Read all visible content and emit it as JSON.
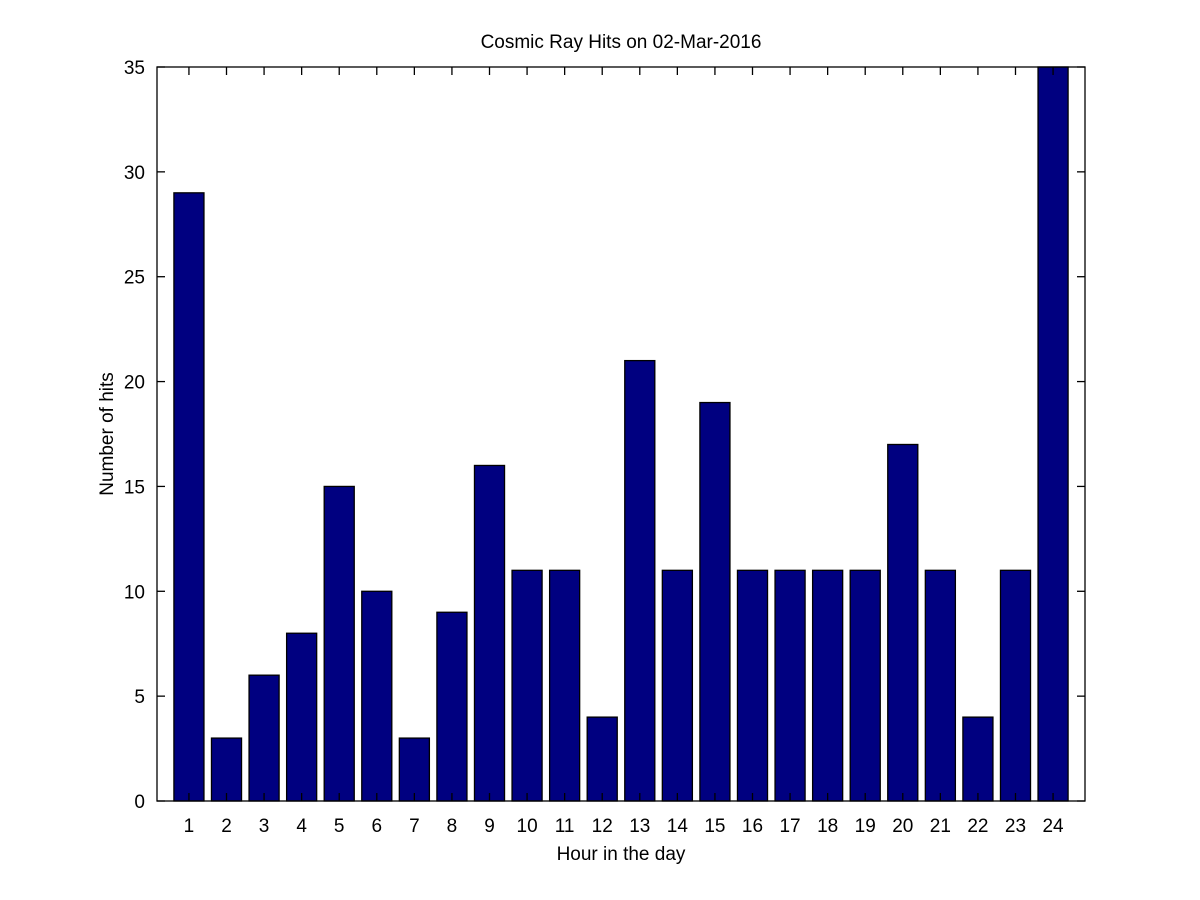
{
  "chart_data": {
    "type": "bar",
    "title": "Cosmic Ray Hits on 02-Mar-2016",
    "xlabel": "Hour in the day",
    "ylabel": "Number of hits",
    "categories": [
      "1",
      "2",
      "3",
      "4",
      "5",
      "6",
      "7",
      "8",
      "9",
      "10",
      "11",
      "12",
      "13",
      "14",
      "15",
      "16",
      "17",
      "18",
      "19",
      "20",
      "21",
      "22",
      "23",
      "24"
    ],
    "values": [
      29,
      3,
      6,
      8,
      15,
      10,
      3,
      9,
      16,
      11,
      11,
      4,
      21,
      11,
      19,
      11,
      11,
      11,
      11,
      17,
      11,
      4,
      11,
      35
    ],
    "ylim": [
      0,
      35
    ],
    "yticks": [
      "0",
      "5",
      "10",
      "15",
      "20",
      "25",
      "30",
      "35"
    ],
    "grid": false,
    "legend": "none",
    "colors": {
      "bar_fill": "#000080",
      "bar_edge": "#000000",
      "axis": "#000000"
    }
  }
}
